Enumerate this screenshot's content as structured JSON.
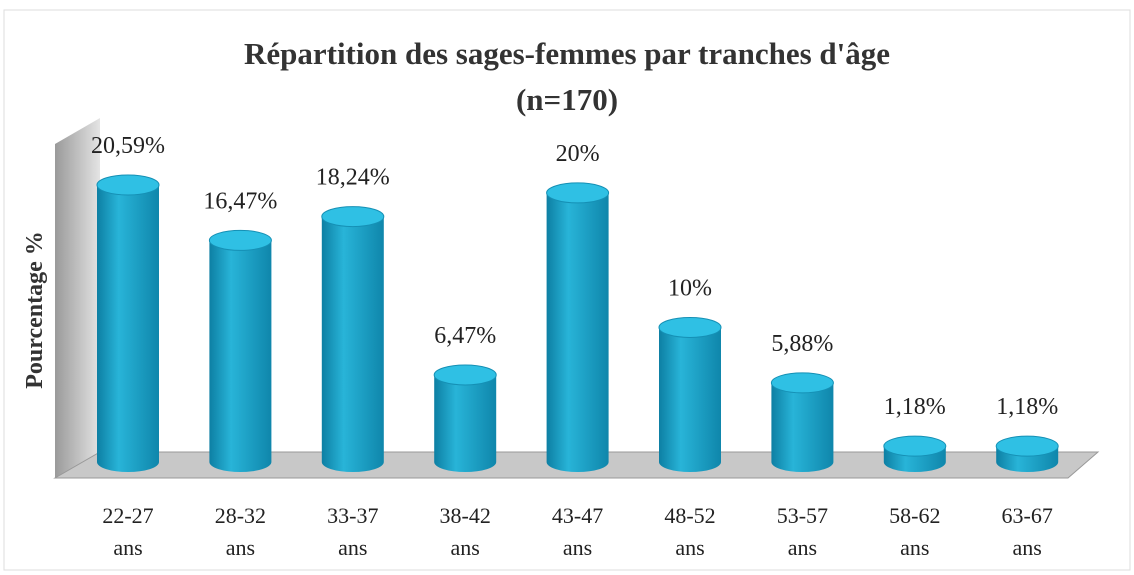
{
  "chart_data": {
    "type": "bar",
    "title": "Répartition des sages-femmes par tranches d'âge",
    "subtitle": "(n=170)",
    "y_label": "Pourcentage %",
    "categories": [
      "22-27 ans",
      "28-32 ans",
      "33-37 ans",
      "38-42 ans",
      "43-47 ans",
      "48-52 ans",
      "53-57 ans",
      "58-62 ans",
      "63-67 ans"
    ],
    "values": [
      20.59,
      16.47,
      18.24,
      6.47,
      20,
      10,
      5.88,
      1.18,
      1.18
    ],
    "value_labels": [
      "20,59%",
      "16,47%",
      "18,24%",
      "6,47%",
      "20%",
      "10%",
      "5,88%",
      "1,18%",
      "1,18%"
    ],
    "color": "#1aa3c8",
    "ylim": [
      0,
      22
    ]
  }
}
